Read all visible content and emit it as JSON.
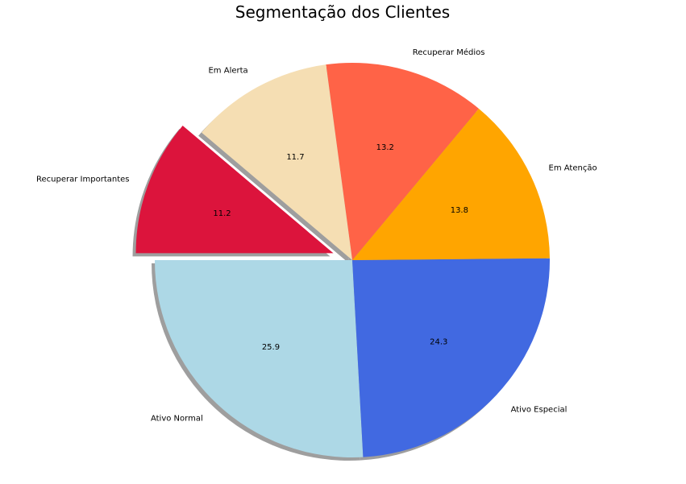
{
  "chart_data": {
    "type": "pie",
    "title": "Segmentação dos Clientes",
    "slices": [
      {
        "label": "Ativo Normal",
        "value": 25.9,
        "pct_label": "25.9",
        "color": "#add8e6",
        "explode": false
      },
      {
        "label": "Ativo Especial",
        "value": 24.3,
        "pct_label": "24.3",
        "color": "#4169e1",
        "explode": false
      },
      {
        "label": "Em Atenção",
        "value": 13.8,
        "pct_label": "13.8",
        "color": "#ffa500",
        "explode": false
      },
      {
        "label": "Recuperar Médios",
        "value": 13.2,
        "pct_label": "13.2",
        "color": "#ff6347",
        "explode": false
      },
      {
        "label": "Em Alerta",
        "value": 11.7,
        "pct_label": "11.7",
        "color": "#f5deb3",
        "explode": false
      },
      {
        "label": "Recuperar Importantes",
        "value": 11.2,
        "pct_label": "11.2",
        "color": "#dc143c",
        "explode": true
      }
    ],
    "start_angle_deg": 180,
    "direction": "counterclockwise",
    "shadow": true,
    "shadow_color": "#9e9e9e"
  }
}
